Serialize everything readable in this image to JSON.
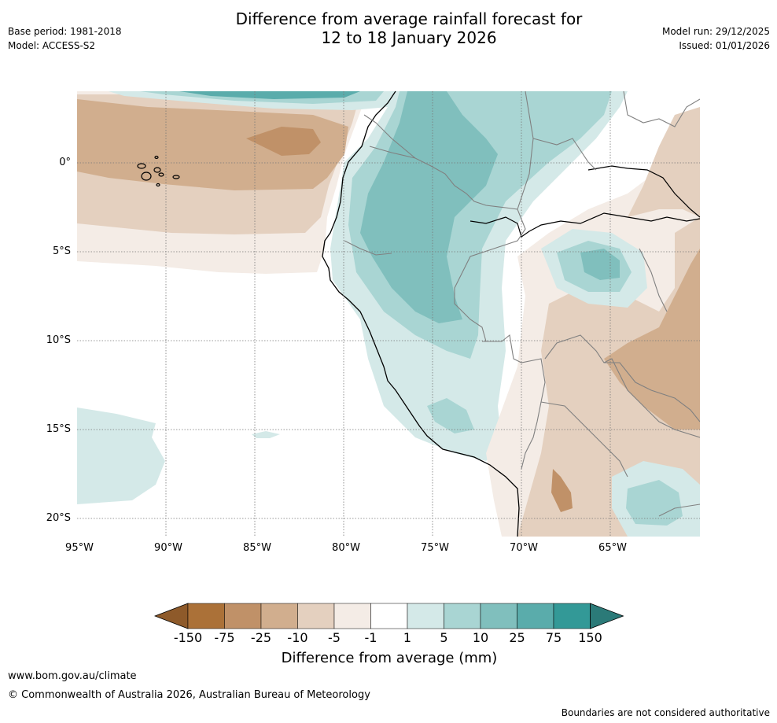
{
  "header": {
    "title_line1": "Difference from average rainfall forecast for",
    "title_line2": "12 to 18 January 2026",
    "base_period": "Base period: 1981-2018",
    "model": "Model: ACCESS-S2",
    "model_run": "Model run: 29/12/2025",
    "issued": "Issued: 01/01/2026"
  },
  "map": {
    "lat_labels": [
      "0°",
      "5°S",
      "10°S",
      "15°S",
      "20°S"
    ],
    "lon_labels": [
      "95°W",
      "90°W",
      "85°W",
      "80°W",
      "75°W",
      "70°W",
      "65°W"
    ]
  },
  "colorbar": {
    "title": "Difference from average (mm)",
    "ticks": [
      "-150",
      "-75",
      "-25",
      "-10",
      "-5",
      "-1",
      "1",
      "5",
      "10",
      "25",
      "75",
      "150"
    ],
    "colors": [
      "#8e5a2a",
      "#ab7138",
      "#c09168",
      "#d1ae8e",
      "#e4d0bf",
      "#f4ece6",
      "#ffffff",
      "#d4e9e8",
      "#a9d5d3",
      "#80bfbd",
      "#5aacab",
      "#339997",
      "#2b7a78"
    ]
  },
  "footer": {
    "website": "www.bom.gov.au/climate",
    "copyright": "© Commonwealth of Australia 2026, Australian Bureau of Meteorology",
    "disclaimer": "Boundaries are not considered authoritative"
  }
}
